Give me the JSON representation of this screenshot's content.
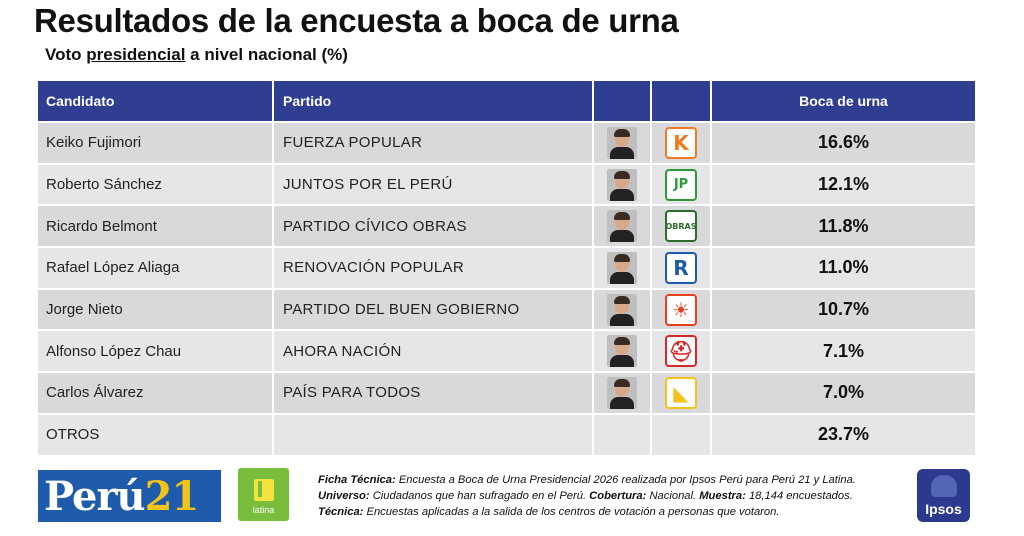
{
  "header": {
    "title": "Resultados de la encuesta a boca de urna",
    "subtitle_prefix": "Voto ",
    "subtitle_underlined": "presidencial",
    "subtitle_suffix": " a nivel nacional (%)"
  },
  "table": {
    "columns": [
      "Candidato",
      "Partido",
      "",
      "",
      "Boca de urna"
    ],
    "rows": [
      {
        "candidate": "Keiko Fujimori",
        "party": "FUERZA POPULAR",
        "logo": "K",
        "logo_color": "#f07a21",
        "value": "16.6%",
        "photo_icon": "keiko-photo",
        "logo_icon": "fuerza-popular-logo"
      },
      {
        "candidate": "Roberto Sánchez",
        "party": "JUNTOS POR EL PERÚ",
        "logo": "JP",
        "logo_color": "#2a9a3a",
        "value": "12.1%",
        "photo_icon": "sanchez-photo",
        "logo_icon": "juntos-por-el-peru-logo"
      },
      {
        "candidate": "Ricardo Belmont",
        "party": "PARTIDO CÍVICO OBRAS",
        "logo": "OBRAS",
        "logo_color": "#2b6b2e",
        "value": "11.8%",
        "photo_icon": "belmont-photo",
        "logo_icon": "obras-logo"
      },
      {
        "candidate": "Rafael López Aliaga",
        "party": "RENOVACIÓN POPULAR",
        "logo": "R",
        "logo_color": "#1f5aa6",
        "value": "11.0%",
        "photo_icon": "lopez-aliaga-photo",
        "logo_icon": "renovacion-popular-logo"
      },
      {
        "candidate": "Jorge Nieto",
        "party": "PARTIDO DEL BUEN GOBIERNO",
        "logo": "☀",
        "logo_color": "#e8401c",
        "value": "10.7%",
        "photo_icon": "nieto-photo",
        "logo_icon": "buen-gobierno-logo"
      },
      {
        "candidate": "Alfonso López Chau",
        "party": "AHORA NACIÓN",
        "logo": "⛑",
        "logo_color": "#d62828",
        "value": "7.1%",
        "photo_icon": "lopez-chau-photo",
        "logo_icon": "ahora-nacion-logo"
      },
      {
        "candidate": "Carlos Álvarez",
        "party": "PAÍS PARA TODOS",
        "logo": "◣",
        "logo_color": "#f2c318",
        "value": "7.0%",
        "photo_icon": "alvarez-photo",
        "logo_icon": "pais-para-todos-logo"
      },
      {
        "candidate": "OTROS",
        "party": "",
        "logo": "",
        "logo_color": "",
        "value": "23.7%"
      }
    ]
  },
  "footer": {
    "peru21_logo_a": "Perú",
    "peru21_logo_b": "21",
    "latina_logo": "latina",
    "ipsos_logo": "Ipsos",
    "ficha_label": "Ficha Técnica:",
    "ficha_text": " Encuesta a Boca de Urna Presidencial 2026 realizada por Ipsos Perú para Perú 21 y Latina.",
    "universo_label": "Universo:",
    "universo_text": " Ciudadanos que han sufragado en el Perú. ",
    "cobertura_label": "Cobertura:",
    "cobertura_text": " Nacional. ",
    "muestra_label": "Muestra:",
    "muestra_text": " 18,144 encuestados.",
    "tecnica_label": "Técnica:",
    "tecnica_text": " Encuestas aplicadas a la salida de los centros de votación a personas que votaron."
  }
}
